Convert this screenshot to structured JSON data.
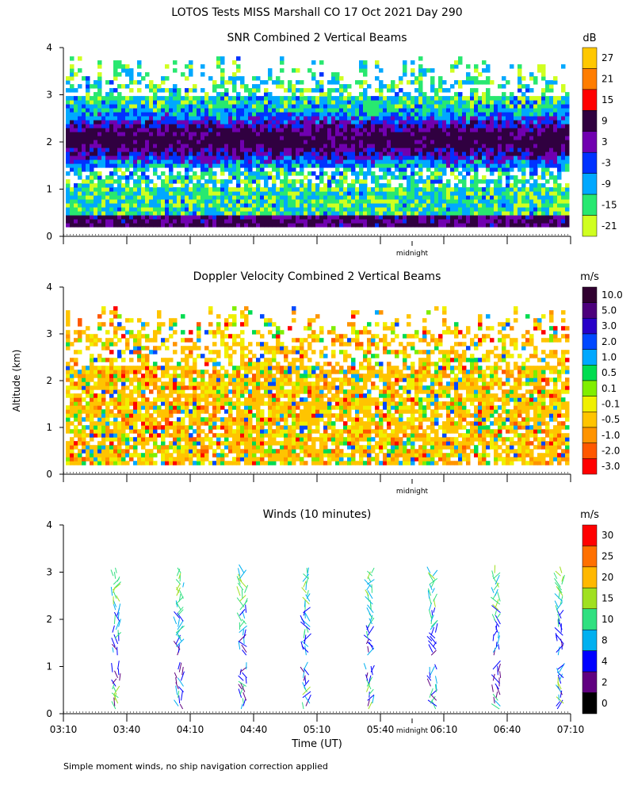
{
  "figure_title": "LOTOS Tests MISS Marshall CO  17 Oct 2021 Day 290",
  "shared_ylabel": "Altitude (km)",
  "shared_xlabel": "Time (UT)",
  "footnote": "Simple moment winds, no ship navigation correction applied",
  "midnight_label": "midnight",
  "chart_data": [
    {
      "type": "heatmap",
      "title": "SNR Combined 2 Vertical Beams",
      "ylabel": "Altitude (km)",
      "ylim": [
        0,
        4
      ],
      "yticks": [
        "0",
        "1",
        "2",
        "3",
        "4"
      ],
      "xlim_minutes": [
        0,
        240
      ],
      "time_range": [
        "03:10",
        "07:10"
      ],
      "colorbar_unit": "dB",
      "colorbar_levels": [
        "27",
        "21",
        "15",
        "9",
        "3",
        "-3",
        "-9",
        "-15",
        "-21"
      ],
      "colorbar_colors": [
        "#ffc800",
        "#ff7d00",
        "#ff0000",
        "#300040",
        "#7000b0",
        "#0032ff",
        "#00a8ff",
        "#28e870",
        "#d0ff20"
      ],
      "data_altitude_range_km": [
        0.2,
        3.9
      ],
      "annotation": "midnight"
    },
    {
      "type": "heatmap",
      "title": "Doppler Velocity Combined 2 Vertical Beams",
      "ylabel": "Altitude (km)",
      "ylim": [
        0,
        4
      ],
      "yticks": [
        "0",
        "1",
        "2",
        "3",
        "4"
      ],
      "xlim_minutes": [
        0,
        240
      ],
      "time_range": [
        "03:10",
        "07:10"
      ],
      "colorbar_unit": "m/s",
      "colorbar_levels": [
        "10.0",
        "5.0",
        "3.0",
        "2.0",
        "1.0",
        "0.5",
        "0.1",
        "-0.1",
        "-0.5",
        "-1.0",
        "-2.0",
        "-3.0"
      ],
      "colorbar_colors": [
        "#300030",
        "#4c007c",
        "#2800c8",
        "#0048ff",
        "#00a8ff",
        "#00dc50",
        "#80ee00",
        "#f0f000",
        "#ffc400",
        "#ff9400",
        "#ff5800",
        "#ff0000"
      ],
      "data_altitude_range_km": [
        0.2,
        3.7
      ],
      "annotation": "midnight"
    },
    {
      "type": "scatter",
      "title": "Winds (10 minutes)",
      "ylabel": "Altitude (km)",
      "xlabel": "Time (UT)",
      "ylim": [
        0,
        4
      ],
      "yticks": [
        "0",
        "1",
        "2",
        "3",
        "4"
      ],
      "xlim_minutes": [
        0,
        240
      ],
      "x_tick_labels": [
        "03:10",
        "03:40",
        "04:10",
        "04:40",
        "05:10",
        "05:40",
        "06:10",
        "06:40",
        "07:10"
      ],
      "colorbar_unit": "m/s",
      "colorbar_levels": [
        "30",
        "25",
        "20",
        "15",
        "10",
        "8",
        "4",
        "2",
        "0"
      ],
      "colorbar_colors": [
        "#ff0000",
        "#ff7000",
        "#ffb800",
        "#a0e020",
        "#30e080",
        "#00b0f0",
        "#0000ff",
        "#600080",
        "#000000"
      ],
      "profile_times": [
        "03:35",
        "04:05",
        "04:35",
        "05:05",
        "05:35",
        "06:05",
        "06:35",
        "07:05"
      ],
      "profile_altitude_range_km": [
        0.1,
        3.0
      ],
      "annotation": "midnight"
    }
  ]
}
